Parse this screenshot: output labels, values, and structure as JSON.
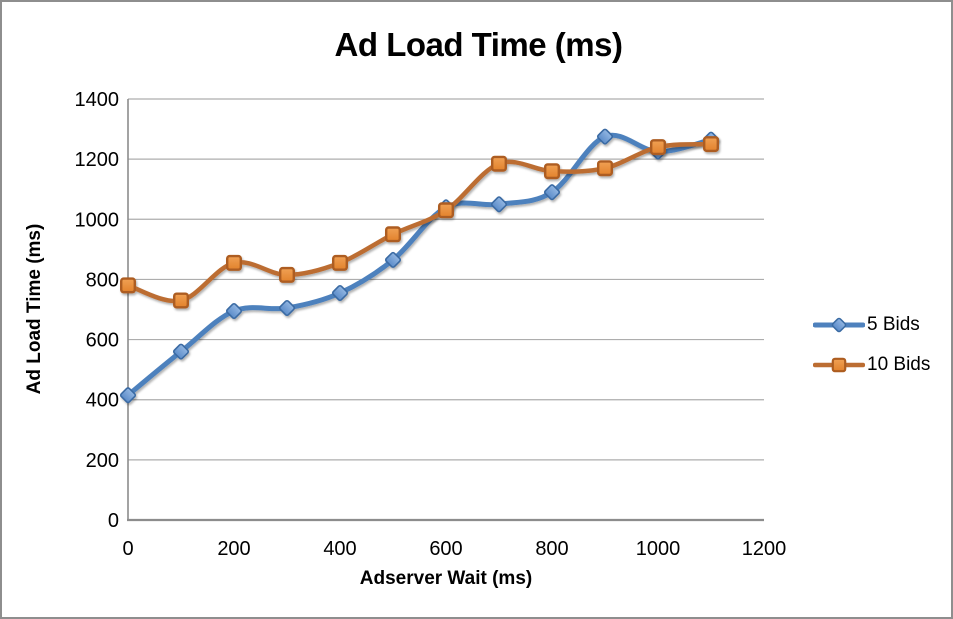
{
  "chart_data": {
    "type": "line",
    "title": "Ad Load Time (ms)",
    "xlabel": "Adserver Wait (ms)",
    "ylabel": "Ad Load Time (ms)",
    "x": [
      0,
      100,
      200,
      300,
      400,
      500,
      600,
      700,
      800,
      900,
      1000,
      1100
    ],
    "series": [
      {
        "name": "5 Bids",
        "marker": "diamond",
        "color": "#4e81bd",
        "line_width": 5,
        "marker_fill_top": "#92b6e2",
        "marker_fill_bottom": "#5c8cc9",
        "marker_stroke": "#3a6ba3",
        "values": [
          415,
          560,
          695,
          705,
          755,
          865,
          1040,
          1050,
          1090,
          1275,
          1225,
          1265
        ]
      },
      {
        "name": "10 Bids",
        "marker": "square",
        "color": "#bc6d32",
        "line_width": 4.5,
        "marker_fill_top": "#f0a155",
        "marker_fill_bottom": "#e8holder",
        "marker_stroke": "#ad5d20",
        "values": [
          780,
          730,
          855,
          815,
          855,
          950,
          1030,
          1185,
          1160,
          1170,
          1240,
          1250
        ]
      }
    ],
    "xlim": [
      0,
      1200
    ],
    "ylim": [
      0,
      1400
    ],
    "xticks": [
      0,
      200,
      400,
      600,
      800,
      1000,
      1200
    ],
    "yticks": [
      0,
      200,
      400,
      600,
      800,
      1000,
      1200,
      1400
    ],
    "grid": true,
    "smooth": true,
    "legend_position": "right"
  },
  "colors": {
    "gridline": "#adadad",
    "axis": "#8c8c8c",
    "tick_text": "#000000",
    "canvas_border": "#8e8e8e",
    "background": "#ffffff"
  }
}
